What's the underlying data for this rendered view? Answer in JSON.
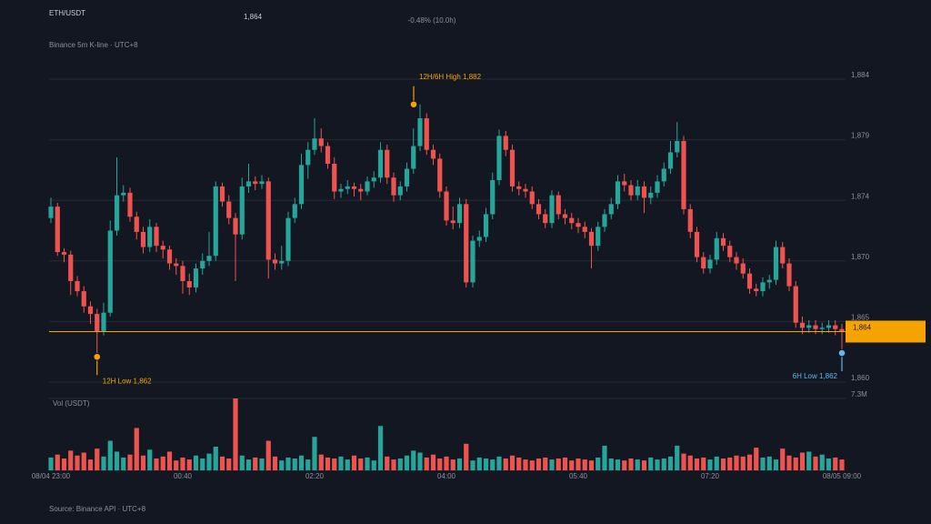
{
  "chart_data": {
    "type": "candlestick",
    "title": "ETH/USDT",
    "subtitle": "Binance 5m K-line · UTC+8",
    "change": "-0.48% (10.0h)",
    "source": "Source: Binance API · UTC+8",
    "volume_label": "Vol (USDT)",
    "last_price": {
      "value": 1864,
      "label": "1,864"
    },
    "up_color": "#26a69a",
    "down_color": "#ef5350",
    "last_price_color": "#f5a300",
    "grid": true,
    "ylim": [
      1860,
      1884
    ],
    "yticks": [
      {
        "value": 1884,
        "label": "1,884"
      },
      {
        "value": 1879.2,
        "label": "1,879"
      },
      {
        "value": 1874.4,
        "label": "1,874"
      },
      {
        "value": 1869.6,
        "label": "1,870"
      },
      {
        "value": 1864.8,
        "label": "1,865"
      },
      {
        "value": 1860,
        "label": "1,860"
      }
    ],
    "y2lim": [
      0,
      7300000
    ],
    "y2ticks": [
      {
        "value": 7300000,
        "label": "7.3M"
      }
    ],
    "annotations": [
      {
        "text": "12H/6H High 1,882",
        "value": 1882.0
      },
      {
        "text": "12H Low 1,862",
        "value": 1862.0
      },
      {
        "text": "6H Low 1,862",
        "value": 1862.3
      }
    ],
    "categories": [
      "08/04 23:00",
      null,
      null,
      null,
      null,
      null,
      null,
      null,
      null,
      null,
      null,
      null,
      null,
      null,
      null,
      null,
      null,
      null,
      null,
      null,
      "00:40",
      null,
      null,
      null,
      null,
      null,
      null,
      null,
      null,
      null,
      null,
      null,
      null,
      null,
      null,
      null,
      null,
      null,
      null,
      null,
      "02:20",
      null,
      null,
      null,
      null,
      null,
      null,
      null,
      null,
      null,
      null,
      null,
      null,
      null,
      null,
      null,
      null,
      null,
      null,
      null,
      "04:00",
      null,
      null,
      null,
      null,
      null,
      null,
      null,
      null,
      null,
      null,
      null,
      null,
      null,
      null,
      null,
      null,
      null,
      null,
      null,
      "05:40",
      null,
      null,
      null,
      null,
      null,
      null,
      null,
      null,
      null,
      null,
      null,
      null,
      null,
      null,
      null,
      null,
      null,
      null,
      null,
      "07:20",
      null,
      null,
      null,
      null,
      null,
      null,
      null,
      null,
      null,
      null,
      null,
      null,
      null,
      null,
      null,
      null,
      null,
      null,
      null,
      "08/05 09:00"
    ],
    "open": [
      1873.0,
      1873.9,
      1870.3,
      1870.1,
      1868.0,
      1867.2,
      1866.0,
      1865.4,
      1864.0,
      1865.5,
      1872.0,
      1874.8,
      1875.0,
      1873.1,
      1871.9,
      1870.7,
      1872.3,
      1870.8,
      1870.5,
      1869.4,
      1869.2,
      1868.0,
      1867.5,
      1869.0,
      1869.6,
      1870.0,
      1875.5,
      1874.3,
      1873.0,
      1871.7,
      1875.5,
      1875.9,
      1875.7,
      1875.9,
      1869.7,
      1869.4,
      1869.6,
      1873.0,
      1874.1,
      1877.2,
      1878.4,
      1879.3,
      1878.7,
      1877.3,
      1875.1,
      1875.3,
      1875.5,
      1875.3,
      1875.1,
      1875.9,
      1876.2,
      1878.4,
      1876.2,
      1874.8,
      1875.5,
      1876.9,
      1878.7,
      1880.9,
      1878.4,
      1877.7,
      1875.1,
      1872.8,
      1872.6,
      1874.1,
      1867.9,
      1871.2,
      1871.5,
      1873.3,
      1876.0,
      1879.5,
      1878.4,
      1875.5,
      1875.3,
      1875.1,
      1874.1,
      1873.3,
      1872.6,
      1874.8,
      1873.3,
      1873.0,
      1872.6,
      1872.3,
      1871.9,
      1870.8,
      1872.3,
      1873.3,
      1874.1,
      1875.9,
      1875.6,
      1874.8,
      1875.5,
      1874.6,
      1875.0,
      1875.9,
      1876.9,
      1878.2,
      1879.1,
      1873.7,
      1871.9,
      1869.9,
      1869.0,
      1869.7,
      1871.4,
      1870.8,
      1869.9,
      1869.4,
      1868.6,
      1867.4,
      1867.2,
      1867.9,
      1868.1,
      1870.7,
      1869.4,
      1867.6,
      1864.7,
      1864.3,
      1864.5,
      1864.2,
      1864.3,
      1864.5,
      1864.2
    ],
    "high": [
      1874.6,
      1874.2,
      1870.6,
      1870.4,
      1868.4,
      1867.6,
      1866.4,
      1865.8,
      1866.3,
      1872.8,
      1877.8,
      1875.6,
      1875.4,
      1873.5,
      1872.3,
      1872.9,
      1872.6,
      1871.2,
      1870.8,
      1869.8,
      1869.6,
      1868.6,
      1869.4,
      1870.2,
      1871.9,
      1875.9,
      1875.8,
      1874.8,
      1873.4,
      1876.2,
      1877.3,
      1876.3,
      1876.4,
      1876.2,
      1870.2,
      1870.8,
      1873.5,
      1874.6,
      1878.1,
      1879.0,
      1880.9,
      1880.1,
      1879.0,
      1877.8,
      1875.7,
      1876.0,
      1875.8,
      1875.7,
      1876.3,
      1876.7,
      1879.0,
      1878.8,
      1876.6,
      1875.9,
      1877.4,
      1880.1,
      1882.0,
      1881.3,
      1878.8,
      1878.1,
      1875.5,
      1873.9,
      1874.6,
      1874.5,
      1871.6,
      1872.0,
      1873.8,
      1876.6,
      1880.0,
      1879.9,
      1878.8,
      1875.9,
      1875.7,
      1875.5,
      1874.5,
      1873.7,
      1875.2,
      1875.1,
      1873.7,
      1873.4,
      1873.0,
      1872.7,
      1872.2,
      1872.7,
      1873.7,
      1874.6,
      1876.4,
      1876.5,
      1876.0,
      1876.0,
      1875.9,
      1875.5,
      1876.4,
      1877.4,
      1879.1,
      1880.6,
      1879.5,
      1874.1,
      1872.3,
      1870.3,
      1870.1,
      1871.9,
      1871.8,
      1871.2,
      1870.3,
      1869.8,
      1869.0,
      1867.8,
      1868.3,
      1868.5,
      1871.2,
      1871.1,
      1869.8,
      1868.0,
      1865.2,
      1864.9,
      1864.9,
      1864.7,
      1864.9,
      1864.9,
      1864.6
    ],
    "low": [
      1872.6,
      1870.0,
      1869.5,
      1866.9,
      1866.8,
      1865.5,
      1864.6,
      1862.0,
      1863.7,
      1865.2,
      1871.6,
      1874.3,
      1872.7,
      1871.3,
      1870.2,
      1870.3,
      1870.3,
      1869.8,
      1868.9,
      1868.5,
      1867.0,
      1866.9,
      1867.1,
      1868.5,
      1869.2,
      1869.6,
      1873.9,
      1872.5,
      1868.0,
      1871.3,
      1875.0,
      1875.2,
      1875.3,
      1868.2,
      1868.9,
      1868.9,
      1869.2,
      1872.6,
      1873.7,
      1876.1,
      1878.0,
      1878.2,
      1876.9,
      1874.5,
      1874.6,
      1874.9,
      1874.7,
      1874.4,
      1874.8,
      1875.4,
      1875.8,
      1875.7,
      1874.3,
      1874.4,
      1875.1,
      1876.5,
      1878.3,
      1878.0,
      1877.2,
      1874.6,
      1872.4,
      1872.1,
      1872.2,
      1867.5,
      1867.5,
      1870.7,
      1871.1,
      1872.9,
      1875.6,
      1877.9,
      1875.1,
      1874.8,
      1874.6,
      1873.7,
      1872.9,
      1872.2,
      1872.2,
      1872.9,
      1872.5,
      1872.1,
      1871.8,
      1871.4,
      1869.0,
      1870.4,
      1871.9,
      1872.9,
      1873.7,
      1875.1,
      1874.4,
      1874.4,
      1873.4,
      1874.1,
      1874.6,
      1875.5,
      1876.5,
      1877.8,
      1873.3,
      1871.4,
      1869.5,
      1868.6,
      1868.6,
      1869.3,
      1870.4,
      1869.5,
      1868.9,
      1868.2,
      1867.0,
      1866.8,
      1866.8,
      1867.4,
      1867.7,
      1869.0,
      1867.2,
      1864.3,
      1863.8,
      1863.9,
      1863.8,
      1863.8,
      1863.9,
      1863.7,
      1862.3
    ],
    "close": [
      1873.9,
      1870.3,
      1870.1,
      1868.0,
      1867.2,
      1866.0,
      1865.4,
      1864.0,
      1865.5,
      1872.0,
      1874.8,
      1875.0,
      1873.1,
      1871.9,
      1870.7,
      1872.3,
      1870.8,
      1870.5,
      1869.4,
      1869.2,
      1868.0,
      1867.5,
      1869.0,
      1869.6,
      1870.0,
      1875.5,
      1874.3,
      1873.0,
      1871.7,
      1875.5,
      1875.9,
      1875.7,
      1875.9,
      1869.7,
      1869.4,
      1869.6,
      1873.0,
      1874.1,
      1877.2,
      1878.4,
      1879.3,
      1878.7,
      1877.3,
      1875.1,
      1875.3,
      1875.5,
      1875.3,
      1875.1,
      1875.9,
      1876.2,
      1878.4,
      1876.2,
      1874.8,
      1875.5,
      1876.9,
      1878.7,
      1880.9,
      1878.4,
      1877.7,
      1875.1,
      1872.8,
      1872.6,
      1874.1,
      1867.9,
      1871.2,
      1871.5,
      1873.3,
      1876.0,
      1879.5,
      1878.4,
      1875.5,
      1875.3,
      1875.1,
      1874.1,
      1873.3,
      1872.6,
      1874.8,
      1873.3,
      1873.0,
      1872.6,
      1872.3,
      1871.9,
      1870.8,
      1872.3,
      1873.3,
      1874.1,
      1875.9,
      1875.6,
      1874.8,
      1875.5,
      1874.6,
      1875.0,
      1875.9,
      1876.9,
      1878.2,
      1879.1,
      1873.7,
      1871.9,
      1869.9,
      1869.0,
      1869.7,
      1871.4,
      1870.8,
      1869.9,
      1869.4,
      1868.6,
      1867.4,
      1867.2,
      1867.9,
      1868.1,
      1870.7,
      1869.4,
      1867.6,
      1864.7,
      1864.3,
      1864.5,
      1864.2,
      1864.3,
      1864.5,
      1864.2,
      1864.0
    ],
    "volume": [
      1300000,
      1600000,
      1200000,
      2000000,
      1500000,
      1800000,
      1100000,
      2200000,
      1400000,
      3000000,
      1900000,
      1300000,
      1600000,
      4300000,
      1500000,
      2100000,
      1200000,
      1400000,
      1900000,
      1000000,
      1300000,
      1100000,
      1500000,
      1200000,
      1700000,
      2400000,
      1400000,
      1200000,
      7300000,
      1500000,
      1100000,
      1300000,
      1200000,
      3000000,
      1400000,
      1000000,
      1300000,
      1200000,
      1500000,
      1100000,
      3400000,
      1600000,
      1300000,
      1200000,
      1400000,
      1100000,
      1500000,
      1200000,
      1300000,
      1000000,
      4500000,
      1400000,
      1100000,
      1200000,
      1500000,
      2000000,
      1800000,
      1300000,
      1600000,
      1200000,
      1400000,
      1100000,
      1200000,
      2700000,
      1000000,
      1300000,
      1200000,
      1100000,
      1400000,
      1200000,
      1500000,
      1300000,
      1100000,
      1000000,
      1200000,
      1300000,
      1100000,
      1200000,
      1300000,
      1000000,
      1200000,
      1100000,
      1000000,
      1300000,
      2500000,
      1200000,
      1100000,
      1000000,
      1200000,
      1100000,
      1000000,
      1300000,
      1100000,
      1200000,
      1400000,
      2500000,
      1700000,
      1500000,
      1200000,
      1300000,
      1100000,
      1400000,
      1200000,
      1300000,
      1500000,
      1400000,
      1600000,
      2300000,
      1300000,
      1400000,
      1100000,
      2200000,
      1500000,
      1300000,
      1800000,
      1900000,
      1400000,
      1600000,
      1200000,
      1300000,
      1100000
    ]
  }
}
